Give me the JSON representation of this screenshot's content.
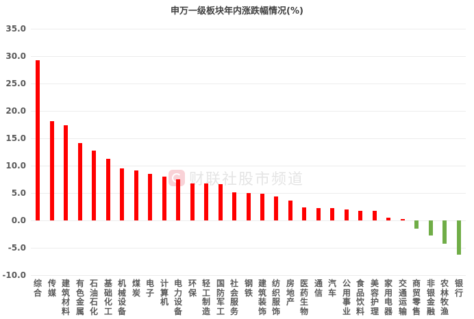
{
  "chart_data": {
    "type": "bar",
    "title": "申万一级板块年内涨跌幅情况(%)",
    "xlabel": "",
    "ylabel": "",
    "ylim": [
      -10,
      35
    ],
    "yticks": [
      "35.0",
      "30.0",
      "25.0",
      "20.0",
      "15.0",
      "10.0",
      "5.0",
      "0.0",
      "-5.0",
      "-10.0"
    ],
    "grid": true,
    "legend": "none",
    "categories": [
      "综合",
      "传媒",
      "建筑材料",
      "有色金属",
      "石油石化",
      "基础化工",
      "机械设备",
      "煤炭",
      "电子",
      "计算机",
      "电力设备",
      "环保",
      "轻工制造",
      "国防军工",
      "社会服务",
      "钢铁",
      "建筑装饰",
      "纺织服饰",
      "房地产",
      "医药生物",
      "通信",
      "汽车",
      "公用事业",
      "食品饮料",
      "美容护理",
      "家用电器",
      "交通运输",
      "商贸零售",
      "非银金融",
      "农林牧渔",
      "银行"
    ],
    "values": [
      29.2,
      18.1,
      17.4,
      14.1,
      12.8,
      11.2,
      9.5,
      9.1,
      8.5,
      8.0,
      7.5,
      6.7,
      6.7,
      6.6,
      5.1,
      5.0,
      4.9,
      4.4,
      3.6,
      2.4,
      2.2,
      2.2,
      2.0,
      1.8,
      1.7,
      0.5,
      0.2,
      -1.5,
      -2.7,
      -4.2,
      -6.3
    ],
    "colors": {
      "positive": "#ff0000",
      "negative": "#70ad47"
    }
  },
  "watermark": {
    "text": "财联社股市频道",
    "logo": "cls-logo-icon"
  }
}
